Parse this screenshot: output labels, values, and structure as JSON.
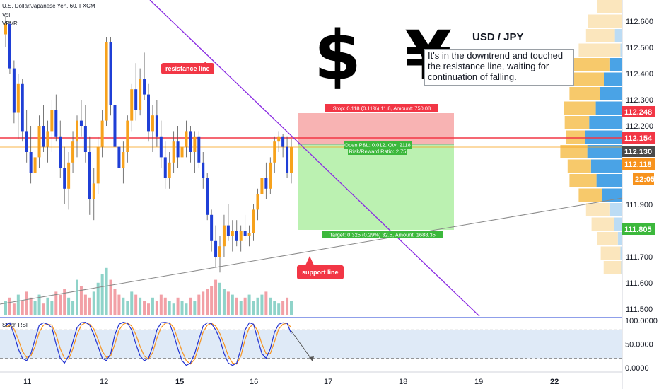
{
  "header": {
    "symbol_line": "U.S. Dollar/Japanese Yen, 60, FXCM",
    "vol_label": "Vol",
    "vpvr_label": "VPVR"
  },
  "annotations": {
    "big_symbols": "$ ¥",
    "title": "USD / JPY",
    "note": "It's in the downtrend and touched the resistance line, waiting for continuation of falling.",
    "resistance_label": "resistance line",
    "support_label": "support line",
    "stop_label": "Stop: 0.118 (0.11%) 11.8, Amount: 750.08",
    "open_label": "Open P&L: 0.012, Qty: 2118",
    "rr_label": "Risk/Reward Ratio: 2.75",
    "target_label": "Target: 0.325 (0.29%) 32.5, Amount: 1688.35"
  },
  "colors": {
    "bull": "#f7a21c",
    "bear": "#1f3fd6",
    "vol_up": "#8fd3c9",
    "vol_down": "#f2a0a6",
    "stop_zone": "#f7a6a6",
    "target_zone": "#b4f0a8",
    "resistance": "#8a2be2",
    "support": "#888888",
    "red_line": "#f23645",
    "orange_line": "#f7a21c",
    "rsi_k": "#2030d0",
    "rsi_d": "#f7931e"
  },
  "price_tags": [
    {
      "label": "112.248",
      "bg": "#f23645"
    },
    {
      "label": "112.154",
      "bg": "#f23645"
    },
    {
      "label": "112.130",
      "bg": "#4a4a4a"
    },
    {
      "label": "112.118",
      "bg": "#f7931e"
    },
    {
      "label": "22:05",
      "bg": "#f7931e"
    },
    {
      "label": "111.805",
      "bg": "#3cb83c"
    }
  ],
  "chart_data": {
    "type": "candlestick",
    "title": "U.S. Dollar/Japanese Yen, 60, FXCM",
    "y_axis": {
      "ticks": [
        "112.600",
        "112.500",
        "112.400",
        "112.300",
        "112.200",
        "111.900",
        "111.800",
        "111.700",
        "111.600",
        "111.500"
      ],
      "ylim": [
        111.47,
        112.68
      ]
    },
    "x_axis": {
      "ticks": [
        "11",
        "12",
        "15",
        "16",
        "17",
        "18",
        "19",
        "22"
      ]
    },
    "candles": [
      [
        112.55,
        112.62,
        112.5,
        112.59
      ],
      [
        112.59,
        112.6,
        112.4,
        112.42
      ],
      [
        112.42,
        112.45,
        112.21,
        112.25
      ],
      [
        112.25,
        112.4,
        112.15,
        112.36
      ],
      [
        112.36,
        112.38,
        112.14,
        112.18
      ],
      [
        112.18,
        112.26,
        112.06,
        112.1
      ],
      [
        112.1,
        112.2,
        111.98,
        112.02
      ],
      [
        112.02,
        112.12,
        111.92,
        112.08
      ],
      [
        112.08,
        112.24,
        112.04,
        112.2
      ],
      [
        112.2,
        112.28,
        112.1,
        112.12
      ],
      [
        112.12,
        112.22,
        112.06,
        112.18
      ],
      [
        112.18,
        112.3,
        112.1,
        112.26
      ],
      [
        112.26,
        112.32,
        112.14,
        112.16
      ],
      [
        112.16,
        112.22,
        112.0,
        112.04
      ],
      [
        112.04,
        112.12,
        111.9,
        111.96
      ],
      [
        111.96,
        112.1,
        111.88,
        112.06
      ],
      [
        112.06,
        112.18,
        112.02,
        112.14
      ],
      [
        112.14,
        112.24,
        112.08,
        112.22
      ],
      [
        112.22,
        112.3,
        112.16,
        112.2
      ],
      [
        112.2,
        112.28,
        112.06,
        112.1
      ],
      [
        112.1,
        112.16,
        111.86,
        111.92
      ],
      [
        111.92,
        112.04,
        111.84,
        111.98
      ],
      [
        111.98,
        112.16,
        111.94,
        112.12
      ],
      [
        112.12,
        112.26,
        112.08,
        112.22
      ],
      [
        112.22,
        112.54,
        112.2,
        112.52
      ],
      [
        112.52,
        112.54,
        112.24,
        112.28
      ],
      [
        112.28,
        112.34,
        112.08,
        112.12
      ],
      [
        112.12,
        112.2,
        112.0,
        112.04
      ],
      [
        112.04,
        112.14,
        111.98,
        112.1
      ],
      [
        112.1,
        112.24,
        112.06,
        112.22
      ],
      [
        112.22,
        112.36,
        112.18,
        112.34
      ],
      [
        112.34,
        112.44,
        112.22,
        112.26
      ],
      [
        112.26,
        112.42,
        112.24,
        112.38
      ],
      [
        112.38,
        112.48,
        112.3,
        112.32
      ],
      [
        112.32,
        112.36,
        112.14,
        112.18
      ],
      [
        112.18,
        112.28,
        112.1,
        112.24
      ],
      [
        112.24,
        112.3,
        112.12,
        112.16
      ],
      [
        112.16,
        112.22,
        112.04,
        112.08
      ],
      [
        112.08,
        112.14,
        111.96,
        112.0
      ],
      [
        112.0,
        112.1,
        111.96,
        112.06
      ],
      [
        112.06,
        112.18,
        112.02,
        112.14
      ],
      [
        112.14,
        112.2,
        112.04,
        112.08
      ],
      [
        112.08,
        112.16,
        112.0,
        112.12
      ],
      [
        112.12,
        112.22,
        112.08,
        112.18
      ],
      [
        112.18,
        112.2,
        112.06,
        112.1
      ],
      [
        112.1,
        112.18,
        112.02,
        112.16
      ],
      [
        112.16,
        112.18,
        112.04,
        112.06
      ],
      [
        112.06,
        112.1,
        111.96,
        112.0
      ],
      [
        112.0,
        112.02,
        111.84,
        111.86
      ],
      [
        111.86,
        111.88,
        111.72,
        111.76
      ],
      [
        111.76,
        111.82,
        111.66,
        111.7
      ],
      [
        111.7,
        111.78,
        111.64,
        111.74
      ],
      [
        111.74,
        111.86,
        111.7,
        111.82
      ],
      [
        111.82,
        111.9,
        111.76,
        111.78
      ],
      [
        111.78,
        111.84,
        111.72,
        111.8
      ],
      [
        111.8,
        111.84,
        111.74,
        111.76
      ],
      [
        111.76,
        111.82,
        111.72,
        111.8
      ],
      [
        111.8,
        111.86,
        111.76,
        111.78
      ],
      [
        111.78,
        111.82,
        111.74,
        111.79
      ],
      [
        111.79,
        111.9,
        111.76,
        111.88
      ],
      [
        111.88,
        111.96,
        111.84,
        111.94
      ],
      [
        111.94,
        112.04,
        111.9,
        112.0
      ],
      [
        112.0,
        112.06,
        111.92,
        111.96
      ],
      [
        111.96,
        112.08,
        111.94,
        112.06
      ],
      [
        112.06,
        112.16,
        112.02,
        112.14
      ],
      [
        112.14,
        112.18,
        112.1,
        112.16
      ],
      [
        112.16,
        112.17,
        112.08,
        112.12
      ],
      [
        112.12,
        112.16,
        112.0,
        112.02
      ],
      [
        112.02,
        112.15,
        111.98,
        112.12
      ]
    ],
    "volume": {
      "values": [
        5,
        6,
        4,
        7,
        5,
        8,
        6,
        5,
        7,
        4,
        6,
        5,
        8,
        7,
        9,
        6,
        5,
        12,
        10,
        7,
        6,
        8,
        11,
        14,
        16,
        12,
        9,
        7,
        6,
        5,
        8,
        7,
        6,
        5,
        4,
        6,
        5,
        7,
        6,
        5,
        4,
        6,
        5,
        4,
        6,
        5,
        7,
        8,
        9,
        10,
        12,
        11,
        9,
        8,
        7,
        6,
        5,
        6,
        7,
        5,
        6,
        7,
        8,
        6,
        5,
        4,
        5,
        6,
        5
      ]
    },
    "support_line": {
      "label": "support line"
    },
    "resistance_line": {
      "label": "resistance line"
    },
    "position": {
      "stop": 112.248,
      "entry": 112.13,
      "target": 111.805
    },
    "stoch_rsi": {
      "title": "Stoch RSI",
      "ticks": [
        "100.0000",
        "50.0000",
        "0.0000"
      ],
      "bands": [
        80,
        20
      ],
      "k": [
        90,
        95,
        70,
        40,
        20,
        15,
        30,
        60,
        90,
        95,
        92,
        85,
        50,
        20,
        10,
        25,
        55,
        85,
        95,
        96,
        90,
        70,
        45,
        20,
        15,
        30,
        70,
        92,
        96,
        94,
        80,
        50,
        25,
        15,
        20,
        45,
        80,
        95,
        96,
        94,
        70,
        40,
        15,
        5,
        10,
        30,
        60,
        88,
        95,
        93,
        80,
        60,
        30,
        10,
        5,
        10,
        40,
        80,
        95,
        92,
        60,
        30,
        20,
        40,
        75,
        92,
        95,
        94,
        72
      ],
      "d": [
        85,
        90,
        82,
        60,
        35,
        22,
        25,
        45,
        75,
        90,
        92,
        90,
        70,
        40,
        20,
        18,
        40,
        70,
        90,
        95,
        92,
        82,
        60,
        35,
        22,
        25,
        50,
        80,
        92,
        95,
        88,
        70,
        45,
        25,
        18,
        32,
        62,
        85,
        94,
        95,
        85,
        60,
        35,
        15,
        8,
        18,
        45,
        75,
        90,
        94,
        88,
        72,
        50,
        25,
        10,
        8,
        25,
        60,
        85,
        92,
        78,
        50,
        30,
        30,
        55,
        82,
        92,
        94,
        85
      ]
    }
  }
}
